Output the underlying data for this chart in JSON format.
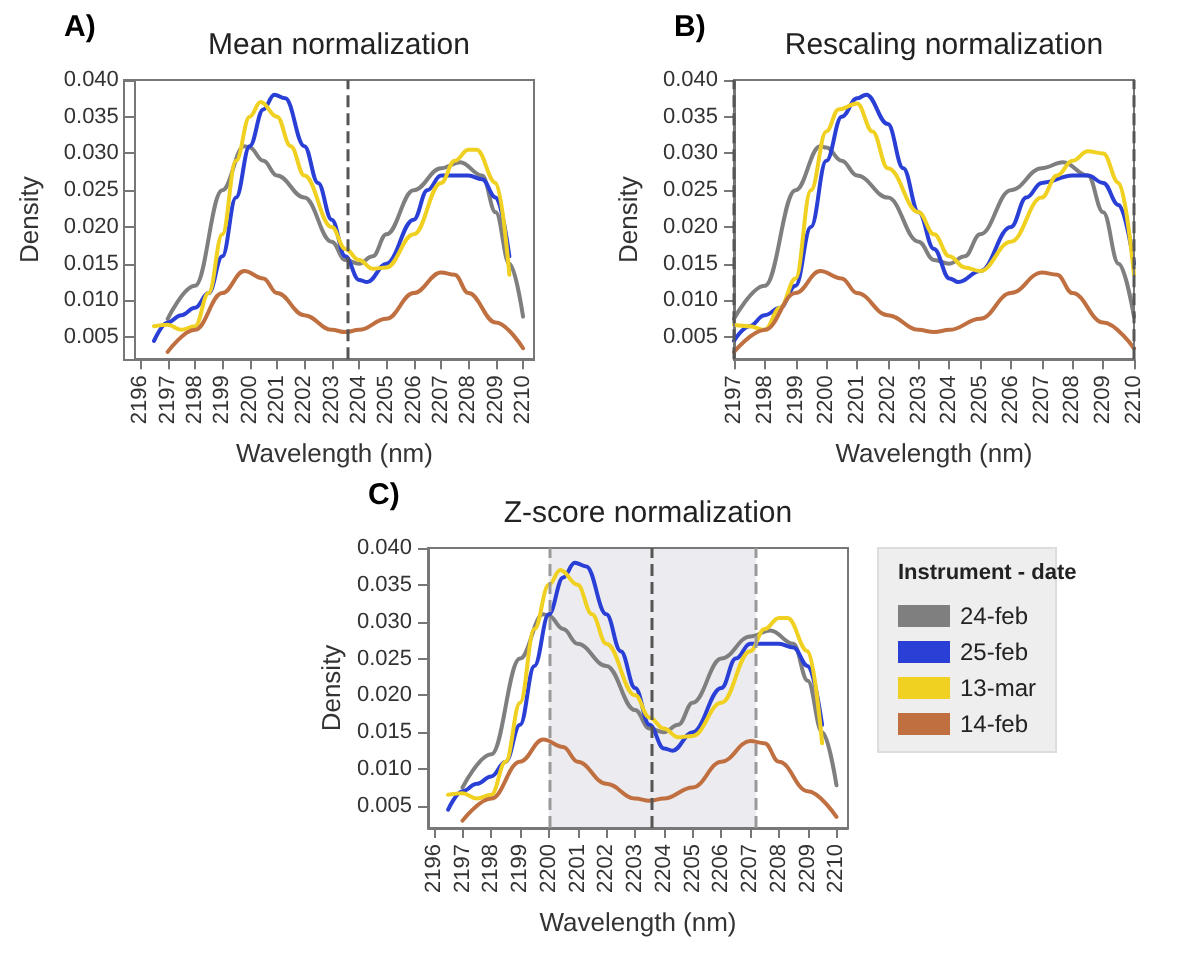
{
  "chart_data": [
    {
      "type": "line",
      "title": "Mean normalization",
      "annotations": [
        "A)"
      ],
      "xlabel": "Wavelength (nm)",
      "ylabel": "Density",
      "xlim": [
        2195.8,
        2210.4
      ],
      "xticks": [
        2196,
        2197,
        2198,
        2199,
        2200,
        2201,
        2202,
        2203,
        2204,
        2205,
        2206,
        2207,
        2208,
        2209,
        2210
      ],
      "ylim": [
        0.002,
        0.04
      ],
      "yticks": [
        {
          "value": 0.005,
          "label": "0.005"
        },
        {
          "value": 0.01,
          "label": "0.010"
        },
        {
          "value": 0.015,
          "label": "0.015"
        },
        {
          "value": 0.02,
          "label": "0.020"
        },
        {
          "value": 0.025,
          "label": "0.025"
        },
        {
          "value": 0.03,
          "label": "0.030"
        },
        {
          "value": 0.035,
          "label": "0.035"
        },
        {
          "value": 0.04,
          "label": "0.040"
        }
      ],
      "grid": false,
      "legend": false,
      "marker": "none",
      "ref_lines": [
        {
          "axis": "x",
          "value": 2203.6,
          "label": null,
          "color": "#555555",
          "line_style": "dashed"
        }
      ],
      "series": [
        {
          "color": "#7f7f7f",
          "x": [
            2197,
            2198,
            2199,
            2199.8,
            2200,
            2200.5,
            2201,
            2202,
            2203,
            2203.5,
            2204,
            2204.5,
            2205,
            2206,
            2207,
            2207.7,
            2208.5,
            2209,
            2209.5,
            2210
          ],
          "values": [
            0.0075,
            0.012,
            0.025,
            0.031,
            0.0308,
            0.029,
            0.027,
            0.024,
            0.018,
            0.0155,
            0.015,
            0.016,
            0.019,
            0.025,
            0.028,
            0.0288,
            0.027,
            0.022,
            0.015,
            0.0078
          ]
        },
        {
          "color": "#2a3fd6",
          "x": [
            2196.5,
            2197,
            2197.5,
            2198,
            2198.5,
            2199,
            2199.5,
            2200,
            2200.5,
            2200.9,
            2201.3,
            2202,
            2202.5,
            2203,
            2203.5,
            2204,
            2204.3,
            2205,
            2206,
            2206.5,
            2207,
            2208,
            2208.5,
            2209,
            2209.5
          ],
          "values": [
            0.0045,
            0.007,
            0.008,
            0.009,
            0.011,
            0.016,
            0.024,
            0.031,
            0.036,
            0.038,
            0.0375,
            0.031,
            0.026,
            0.021,
            0.016,
            0.0128,
            0.0125,
            0.015,
            0.021,
            0.025,
            0.027,
            0.027,
            0.0265,
            0.024,
            0.016
          ]
        },
        {
          "color": "#f0d020",
          "x": [
            2196.5,
            2197,
            2197.5,
            2198,
            2198.5,
            2199,
            2199.5,
            2200,
            2200.4,
            2201,
            2201.5,
            2202,
            2203,
            2203.5,
            2204,
            2204.5,
            2205,
            2206,
            2207,
            2207.5,
            2208,
            2208.3,
            2209,
            2209.5
          ],
          "values": [
            0.0065,
            0.0067,
            0.006,
            0.0065,
            0.011,
            0.019,
            0.029,
            0.035,
            0.037,
            0.035,
            0.031,
            0.027,
            0.02,
            0.017,
            0.0155,
            0.0143,
            0.0145,
            0.019,
            0.026,
            0.029,
            0.0305,
            0.0305,
            0.026,
            0.0135
          ]
        },
        {
          "color": "#c07040",
          "x": [
            2197,
            2198,
            2199,
            2199.8,
            2200.5,
            2201,
            2202,
            2203,
            2203.5,
            2204,
            2205,
            2206,
            2207,
            2207.5,
            2208,
            2209,
            2210
          ],
          "values": [
            0.003,
            0.006,
            0.011,
            0.014,
            0.013,
            0.011,
            0.008,
            0.006,
            0.0057,
            0.006,
            0.0075,
            0.011,
            0.0138,
            0.0135,
            0.011,
            0.007,
            0.0035
          ]
        }
      ]
    },
    {
      "type": "line",
      "title": "Rescaling normalization",
      "annotations": [
        "B)"
      ],
      "xlabel": "Wavelength (nm)",
      "ylabel": "Density",
      "xlim": [
        2197,
        2210
      ],
      "xticks": [
        2197,
        2198,
        2199,
        2200,
        2201,
        2202,
        2203,
        2204,
        2205,
        2206,
        2207,
        2208,
        2209,
        2210
      ],
      "ylim": [
        0.002,
        0.04
      ],
      "yticks": [
        {
          "value": 0.005,
          "label": "0.005"
        },
        {
          "value": 0.01,
          "label": "0.010"
        },
        {
          "value": 0.015,
          "label": "0.015"
        },
        {
          "value": 0.02,
          "label": "0.020"
        },
        {
          "value": 0.025,
          "label": "0.025"
        },
        {
          "value": 0.03,
          "label": "0.030"
        },
        {
          "value": 0.035,
          "label": "0.035"
        },
        {
          "value": 0.04,
          "label": "0.040"
        }
      ],
      "grid": false,
      "legend": false,
      "marker": "none",
      "ref_lines": [
        {
          "axis": "x",
          "value": 2197,
          "label": null,
          "color": "#555555",
          "line_style": "dashed"
        },
        {
          "axis": "x",
          "value": 2210,
          "label": null,
          "color": "#555555",
          "line_style": "dashed"
        }
      ],
      "series": [
        {
          "color": "#7f7f7f",
          "x": [
            2197,
            2198,
            2199,
            2199.8,
            2200,
            2200.5,
            2201,
            2202,
            2203,
            2203.5,
            2204,
            2204.5,
            2205,
            2206,
            2207,
            2207.7,
            2208.5,
            2209,
            2209.5,
            2210
          ],
          "values": [
            0.0075,
            0.012,
            0.025,
            0.031,
            0.0308,
            0.029,
            0.027,
            0.024,
            0.018,
            0.0155,
            0.015,
            0.016,
            0.019,
            0.025,
            0.028,
            0.0288,
            0.027,
            0.022,
            0.015,
            0.0078
          ]
        },
        {
          "color": "#2a3fd6",
          "x": [
            2197,
            2197.5,
            2198,
            2198.5,
            2199,
            2199.5,
            2200,
            2200.5,
            2201,
            2201.3,
            2202,
            2202.5,
            2203,
            2203.5,
            2204,
            2204.3,
            2205,
            2206,
            2206.5,
            2207,
            2208,
            2208.5,
            2209,
            2209.5,
            2210
          ],
          "values": [
            0.0045,
            0.0065,
            0.008,
            0.009,
            0.012,
            0.02,
            0.029,
            0.035,
            0.0375,
            0.038,
            0.034,
            0.028,
            0.022,
            0.017,
            0.013,
            0.0125,
            0.014,
            0.02,
            0.024,
            0.026,
            0.027,
            0.027,
            0.026,
            0.023,
            0.015
          ]
        },
        {
          "color": "#f0d020",
          "x": [
            2197,
            2197.5,
            2198,
            2198.5,
            2199,
            2199.5,
            2200,
            2200.4,
            2201,
            2201.5,
            2202,
            2203,
            2203.5,
            2204,
            2204.5,
            2205,
            2206,
            2207,
            2207.5,
            2208,
            2208.5,
            2209,
            2209.5,
            2210
          ],
          "values": [
            0.0067,
            0.0065,
            0.006,
            0.009,
            0.013,
            0.025,
            0.033,
            0.036,
            0.0368,
            0.033,
            0.028,
            0.022,
            0.019,
            0.016,
            0.0145,
            0.014,
            0.018,
            0.024,
            0.027,
            0.029,
            0.0303,
            0.03,
            0.026,
            0.0135
          ]
        },
        {
          "color": "#c07040",
          "x": [
            2197,
            2198,
            2199,
            2199.8,
            2200.5,
            2201,
            2202,
            2203,
            2203.5,
            2204,
            2205,
            2206,
            2207,
            2207.5,
            2208,
            2209,
            2210
          ],
          "values": [
            0.003,
            0.006,
            0.011,
            0.014,
            0.013,
            0.011,
            0.008,
            0.006,
            0.0057,
            0.006,
            0.0075,
            0.011,
            0.0138,
            0.0135,
            0.011,
            0.007,
            0.0035
          ]
        }
      ]
    },
    {
      "type": "line",
      "title": "Z-score normalization",
      "annotations": [
        "C)"
      ],
      "xlabel": "Wavelength (nm)",
      "ylabel": "Density",
      "legend_title": "Instrument - date",
      "xlim": [
        2195.8,
        2210.4
      ],
      "xticks": [
        2196,
        2197,
        2198,
        2199,
        2200,
        2201,
        2202,
        2203,
        2204,
        2205,
        2206,
        2207,
        2208,
        2209,
        2210
      ],
      "ylim": [
        0.002,
        0.04
      ],
      "yticks": [
        {
          "value": 0.005,
          "label": "0.005"
        },
        {
          "value": 0.01,
          "label": "0.010"
        },
        {
          "value": 0.015,
          "label": "0.015"
        },
        {
          "value": 0.02,
          "label": "0.020"
        },
        {
          "value": 0.025,
          "label": "0.025"
        },
        {
          "value": 0.03,
          "label": "0.030"
        },
        {
          "value": 0.035,
          "label": "0.035"
        },
        {
          "value": 0.04,
          "label": "0.040"
        }
      ],
      "grid": false,
      "legend": "right",
      "marker": "none",
      "bands": [
        {
          "axis": "x",
          "from": 2200,
          "to": 2207.2,
          "label": null,
          "color": "#ececf0"
        }
      ],
      "ref_lines": [
        {
          "axis": "x",
          "value": 2200,
          "label": null,
          "color": "#999999",
          "line_style": "dashed"
        },
        {
          "axis": "x",
          "value": 2203.6,
          "label": null,
          "color": "#555555",
          "line_style": "dashed"
        },
        {
          "axis": "x",
          "value": 2207.2,
          "label": null,
          "color": "#999999",
          "line_style": "dashed"
        }
      ],
      "series": [
        {
          "name": "24-feb",
          "color": "#7f7f7f",
          "x": [
            2197,
            2198,
            2199,
            2199.8,
            2200,
            2200.5,
            2201,
            2202,
            2203,
            2203.5,
            2204,
            2204.5,
            2205,
            2206,
            2207,
            2207.7,
            2208.5,
            2209,
            2209.5,
            2210
          ],
          "values": [
            0.0075,
            0.012,
            0.025,
            0.031,
            0.0308,
            0.029,
            0.027,
            0.024,
            0.018,
            0.0155,
            0.015,
            0.016,
            0.019,
            0.025,
            0.028,
            0.0288,
            0.027,
            0.022,
            0.015,
            0.0078
          ]
        },
        {
          "name": "25-feb",
          "color": "#2a3fd6",
          "x": [
            2196.5,
            2197,
            2197.5,
            2198,
            2198.5,
            2199,
            2199.5,
            2200,
            2200.5,
            2200.9,
            2201.3,
            2202,
            2202.5,
            2203,
            2203.5,
            2204,
            2204.3,
            2205,
            2206,
            2206.5,
            2207,
            2208,
            2208.5,
            2209,
            2209.5
          ],
          "values": [
            0.0045,
            0.007,
            0.008,
            0.009,
            0.011,
            0.016,
            0.024,
            0.031,
            0.036,
            0.038,
            0.0375,
            0.031,
            0.026,
            0.021,
            0.016,
            0.0128,
            0.0125,
            0.015,
            0.021,
            0.025,
            0.027,
            0.027,
            0.0265,
            0.024,
            0.016
          ]
        },
        {
          "name": "13-mar",
          "color": "#f0d020",
          "x": [
            2196.5,
            2197,
            2197.5,
            2198,
            2198.5,
            2199,
            2199.5,
            2200,
            2200.4,
            2201,
            2201.5,
            2202,
            2203,
            2203.5,
            2204,
            2204.5,
            2205,
            2206,
            2207,
            2207.5,
            2208,
            2208.3,
            2209,
            2209.5
          ],
          "values": [
            0.0065,
            0.0067,
            0.006,
            0.0065,
            0.011,
            0.019,
            0.029,
            0.035,
            0.037,
            0.035,
            0.031,
            0.027,
            0.02,
            0.017,
            0.0155,
            0.0143,
            0.0145,
            0.019,
            0.026,
            0.029,
            0.0305,
            0.0305,
            0.026,
            0.0135
          ]
        },
        {
          "name": "14-feb",
          "color": "#c07040",
          "x": [
            2197,
            2198,
            2199,
            2199.8,
            2200.5,
            2201,
            2202,
            2203,
            2203.5,
            2204,
            2205,
            2206,
            2207,
            2207.5,
            2208,
            2209,
            2210
          ],
          "values": [
            0.003,
            0.006,
            0.011,
            0.014,
            0.013,
            0.011,
            0.008,
            0.006,
            0.0057,
            0.006,
            0.0075,
            0.011,
            0.0138,
            0.0135,
            0.011,
            0.007,
            0.0035
          ]
        }
      ]
    }
  ]
}
